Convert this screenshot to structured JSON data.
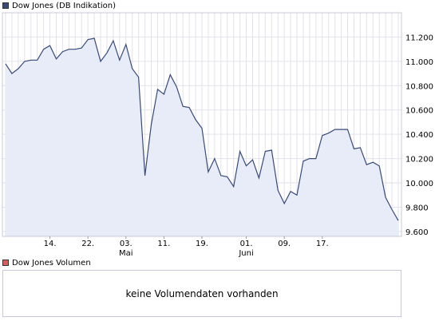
{
  "chart_data": {
    "type": "area",
    "series": [
      {
        "name": "Dow Jones (DB Indikation)",
        "color": "#3a4a75",
        "fill": "#e8ecf8",
        "values": [
          10980,
          10900,
          10940,
          11000,
          11010,
          11010,
          11100,
          11130,
          11020,
          11080,
          11100,
          11100,
          11110,
          11180,
          11190,
          11000,
          11070,
          11170,
          11010,
          11140,
          10940,
          10870,
          10060,
          10480,
          10770,
          10730,
          10890,
          10790,
          10630,
          10620,
          10520,
          10450,
          10090,
          10200,
          10060,
          10050,
          9970,
          10260,
          10140,
          10190,
          10040,
          10260,
          10270,
          9940,
          9830,
          9930,
          9900,
          10180,
          10200,
          10200,
          10390,
          10410,
          10440,
          10440,
          10440,
          10280,
          10290,
          10150,
          10170,
          10140,
          9880,
          9780,
          9690
        ]
      }
    ],
    "x_tick_labels": [
      "14.",
      "22.",
      "03.",
      "11.",
      "19.",
      "01.",
      "09.",
      "17."
    ],
    "x_tick_index": [
      7,
      13,
      19,
      25,
      31,
      38,
      44,
      50
    ],
    "month_labels": [
      "Mai",
      "Juni"
    ],
    "month_index": [
      19,
      38
    ],
    "y_ticks": [
      "11.200",
      "11.000",
      "10.800",
      "10.600",
      "10.400",
      "10.200",
      "10.000",
      "9.800",
      "9.600"
    ],
    "y_tick_values": [
      11200,
      11000,
      10800,
      10600,
      10400,
      10200,
      10000,
      9800,
      9600
    ],
    "ylim": [
      9560,
      11400
    ],
    "grid": true
  },
  "volume_panel": {
    "legend": "Dow Jones Volumen",
    "legend_color": "#d26060",
    "message": "keine Volumendaten vorhanden"
  }
}
